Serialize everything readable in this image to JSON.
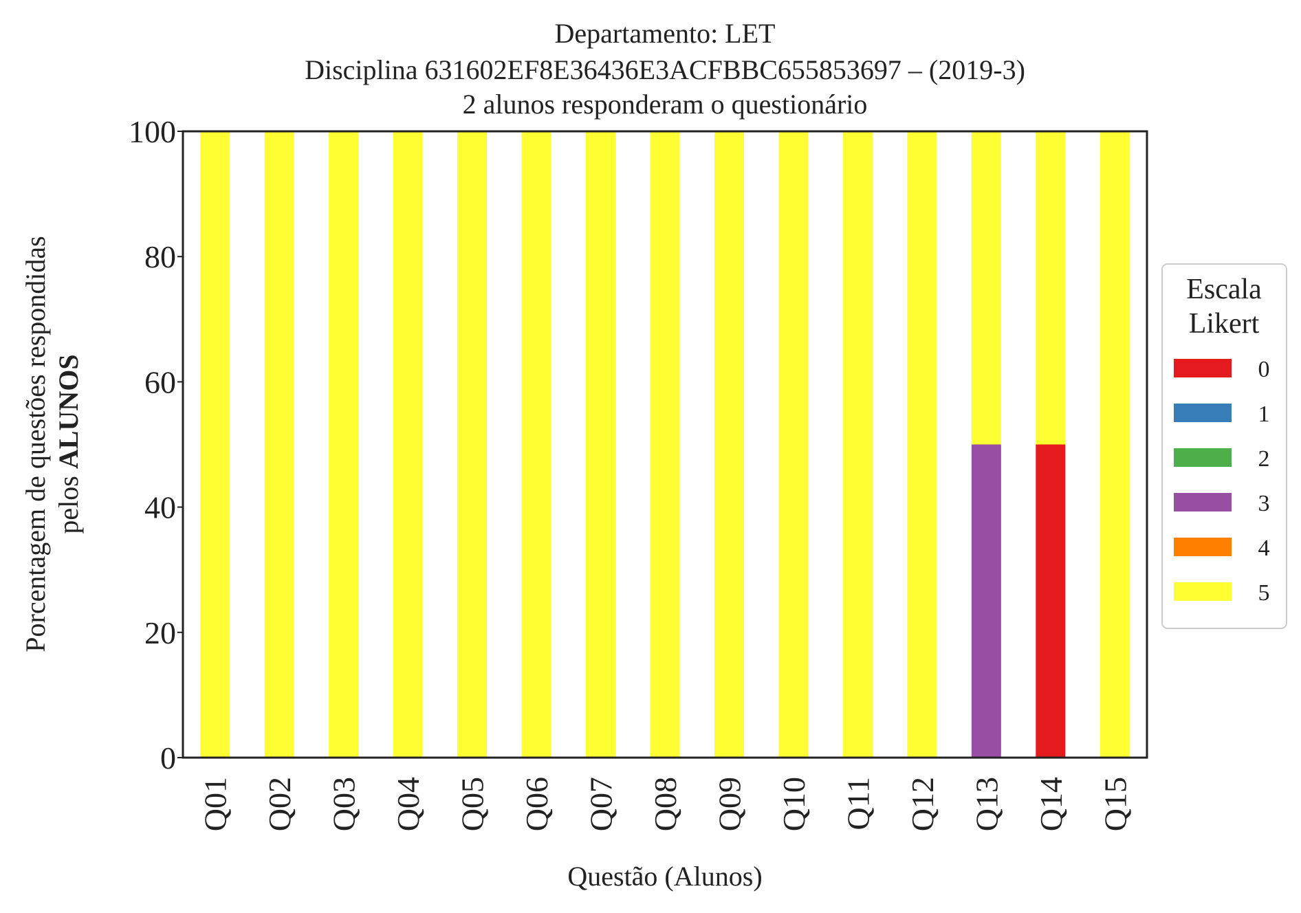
{
  "chart_data": {
    "type": "bar",
    "stacked": true,
    "title_lines": [
      "Departamento: LET",
      "Disciplina 631602EF8E36436E3ACFBBC655853697 – (2019-3)",
      "2 alunos responderam o questionário"
    ],
    "xlabel": "Questão (Alunos)",
    "ylabel_line1": "Porcentagem de questões respondidas",
    "ylabel_line2_prefix": "pelos ",
    "ylabel_line2_bold": "ALUNOS",
    "ylim": [
      0,
      100
    ],
    "yticks": [
      "0",
      "20",
      "40",
      "60",
      "80",
      "100"
    ],
    "grid": false,
    "legend_position": "right",
    "legend_title_lines": [
      "Escala",
      "Likert"
    ],
    "categories": [
      "Q01",
      "Q02",
      "Q03",
      "Q04",
      "Q05",
      "Q06",
      "Q07",
      "Q08",
      "Q09",
      "Q10",
      "Q11",
      "Q12",
      "Q13",
      "Q14",
      "Q15"
    ],
    "series": [
      {
        "name": "0",
        "color": "#e41a1c",
        "values": [
          0,
          0,
          0,
          0,
          0,
          0,
          0,
          0,
          0,
          0,
          0,
          0,
          0,
          50,
          0
        ]
      },
      {
        "name": "1",
        "color": "#377eb8",
        "values": [
          0,
          0,
          0,
          0,
          0,
          0,
          0,
          0,
          0,
          0,
          0,
          0,
          0,
          0,
          0
        ]
      },
      {
        "name": "2",
        "color": "#4daf4a",
        "values": [
          0,
          0,
          0,
          0,
          0,
          0,
          0,
          0,
          0,
          0,
          0,
          0,
          0,
          0,
          0
        ]
      },
      {
        "name": "3",
        "color": "#984ea3",
        "values": [
          0,
          0,
          0,
          0,
          0,
          0,
          0,
          0,
          0,
          0,
          0,
          0,
          50,
          0,
          0
        ]
      },
      {
        "name": "4",
        "color": "#ff7f00",
        "values": [
          0,
          0,
          0,
          0,
          0,
          0,
          0,
          0,
          0,
          0,
          0,
          0,
          0,
          0,
          0
        ]
      },
      {
        "name": "5",
        "color": "#ffff33",
        "values": [
          100,
          100,
          100,
          100,
          100,
          100,
          100,
          100,
          100,
          100,
          100,
          100,
          50,
          50,
          100
        ]
      }
    ]
  }
}
